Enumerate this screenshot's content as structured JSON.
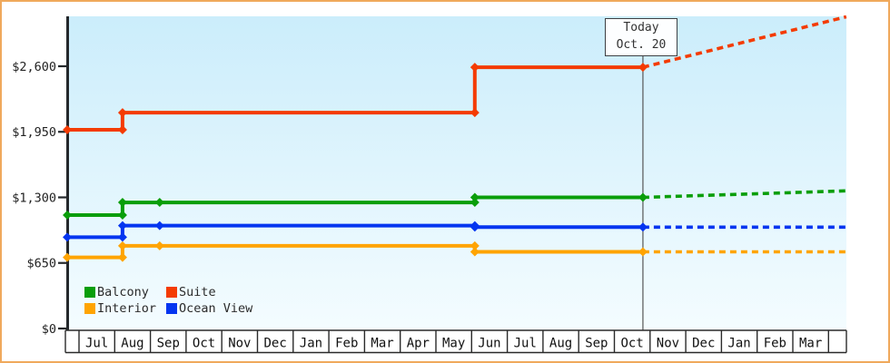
{
  "window": {
    "border_color": "#f0a95c",
    "plot_bg_top": "#cbedfb",
    "plot_bg_bottom": "#f4fcff",
    "axis_color": "#24282b",
    "grid_line_color": "#2a2a2a",
    "text_color": "#222222",
    "today_line_color": "#555555"
  },
  "chart_data": {
    "type": "line",
    "title": "",
    "description": "Stepped price-history chart of cruise cabin categories over ~22 months with dashed projection after today",
    "grid": false,
    "legend_position": "bottom-left",
    "x_axis": {
      "t_unit": "months (0 = start of first Jul column)",
      "months": [
        "Jul",
        "Aug",
        "Sep",
        "Oct",
        "Nov",
        "Dec",
        "Jan",
        "Feb",
        "Mar",
        "Apr",
        "May",
        "Jun",
        "Jul",
        "Aug",
        "Sep",
        "Oct",
        "Nov",
        "Dec",
        "Jan",
        "Feb",
        "Mar"
      ]
    },
    "y_axis": {
      "currency": "USD",
      "ticks": [
        {
          "label": "$0",
          "value": 0
        },
        {
          "label": "$650",
          "value": 650
        },
        {
          "label": "$1,300",
          "value": 1300
        },
        {
          "label": "$1,950",
          "value": 1950
        },
        {
          "label": "$2,600",
          "value": 2600
        }
      ],
      "range": [
        0,
        3200
      ]
    },
    "today": {
      "line1": "Today",
      "line2": "Oct. 20",
      "t": 15.8
    },
    "series": [
      {
        "name": "Balcony",
        "color": "#0a9e0a",
        "points": [
          {
            "t": -0.33,
            "price": 1125
          },
          {
            "t": 1.22,
            "price": 1125
          },
          {
            "t": 1.22,
            "price": 1250
          },
          {
            "t": 2.26,
            "price": 1250
          },
          {
            "t": 11.09,
            "price": 1250
          },
          {
            "t": 11.09,
            "price": 1300
          },
          {
            "t": 15.8,
            "price": 1300
          }
        ],
        "projection": [
          {
            "t": 15.8,
            "price": 1300
          },
          {
            "t": 21.5,
            "price": 1365
          }
        ]
      },
      {
        "name": "Suite",
        "color": "#f43b02",
        "points": [
          {
            "t": -0.33,
            "price": 1970
          },
          {
            "t": 1.22,
            "price": 1970
          },
          {
            "t": 1.22,
            "price": 2140
          },
          {
            "t": 11.09,
            "price": 2140
          },
          {
            "t": 11.09,
            "price": 2590
          },
          {
            "t": 15.8,
            "price": 2590
          }
        ],
        "projection": [
          {
            "t": 15.8,
            "price": 2590
          },
          {
            "t": 21.5,
            "price": 3090
          }
        ]
      },
      {
        "name": "Interior",
        "color": "#ffa402",
        "points": [
          {
            "t": -0.33,
            "price": 705
          },
          {
            "t": 1.22,
            "price": 705
          },
          {
            "t": 1.22,
            "price": 820
          },
          {
            "t": 2.26,
            "price": 820
          },
          {
            "t": 11.09,
            "price": 820
          },
          {
            "t": 11.09,
            "price": 760
          },
          {
            "t": 15.8,
            "price": 760
          }
        ],
        "projection": [
          {
            "t": 15.8,
            "price": 760
          },
          {
            "t": 21.5,
            "price": 760
          }
        ]
      },
      {
        "name": "Ocean View",
        "color": "#0435f0",
        "points": [
          {
            "t": -0.33,
            "price": 905
          },
          {
            "t": 1.22,
            "price": 905
          },
          {
            "t": 1.22,
            "price": 1020
          },
          {
            "t": 2.26,
            "price": 1020
          },
          {
            "t": 11.09,
            "price": 1020
          },
          {
            "t": 11.09,
            "price": 1005
          },
          {
            "t": 15.8,
            "price": 1005
          }
        ],
        "projection": [
          {
            "t": 15.8,
            "price": 1005
          },
          {
            "t": 21.5,
            "price": 1005
          }
        ]
      }
    ],
    "legend": {
      "items": [
        {
          "label": "Balcony"
        },
        {
          "label": "Suite"
        },
        {
          "label": "Interior"
        },
        {
          "label": "Ocean View"
        }
      ]
    }
  }
}
